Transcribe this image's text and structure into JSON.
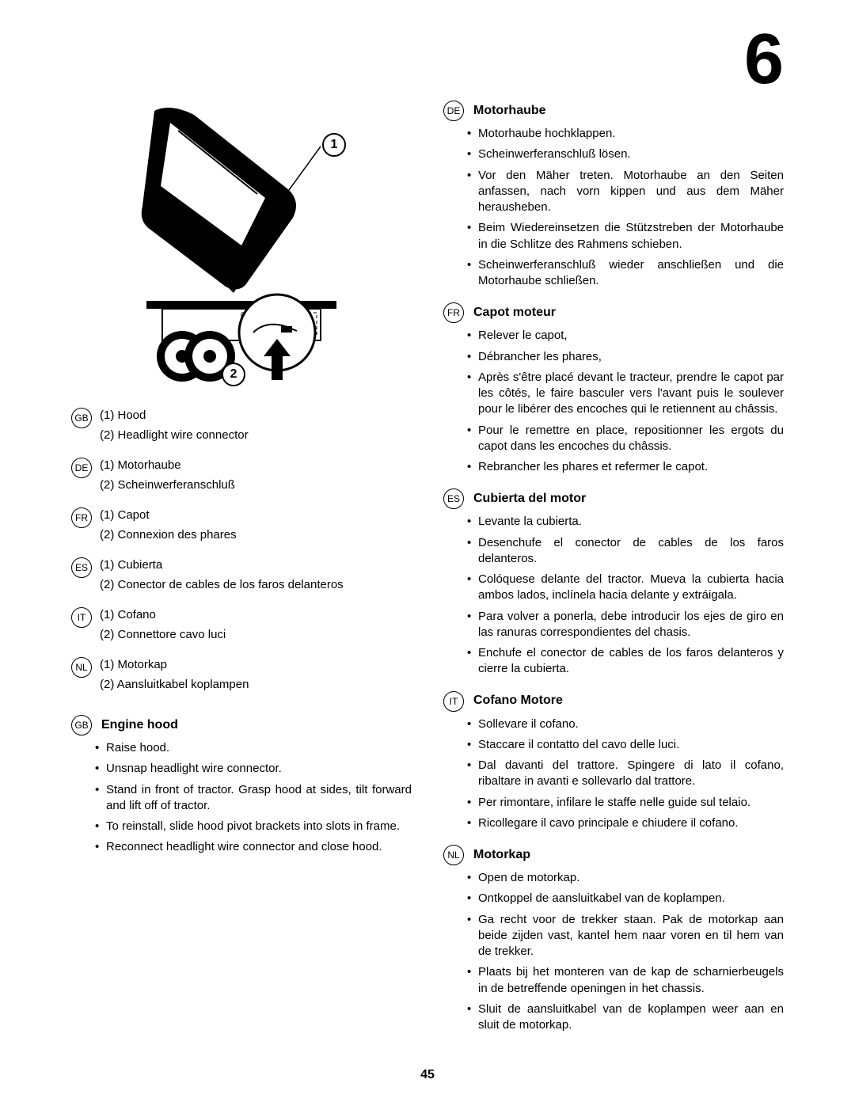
{
  "page_number_top": "6",
  "page_number_bottom": "45",
  "callouts": {
    "one": "1",
    "two": "2"
  },
  "legends": [
    {
      "code": "GB",
      "lines": [
        "(1) Hood",
        "(2) Headlight  wire connector"
      ]
    },
    {
      "code": "DE",
      "lines": [
        "(1) Motorhaube",
        "(2) Scheinwerferanschluß"
      ]
    },
    {
      "code": "FR",
      "lines": [
        "(1) Capot",
        "(2) Connexion des phares"
      ]
    },
    {
      "code": "ES",
      "lines": [
        "(1) Cubierta",
        "(2) Conector de cables de los faros delanteros"
      ]
    },
    {
      "code": "IT",
      "lines": [
        "(1) Cofano",
        "(2) Connettore cavo luci"
      ]
    },
    {
      "code": "NL",
      "lines": [
        "(1) Motorkap",
        "(2) Aansluitkabel koplampen"
      ]
    }
  ],
  "sections_left": [
    {
      "code": "GB",
      "title": "Engine hood",
      "items": [
        "Raise hood.",
        "Unsnap headlight wire connector.",
        "Stand in front of tractor.  Grasp hood at sides, tilt forward and lift off of tractor.",
        "To reinstall, slide hood pivot brackets into slots in frame.",
        "Reconnect headlight wire connector and close hood."
      ]
    }
  ],
  "sections_right": [
    {
      "code": "DE",
      "title": "Motorhaube",
      "items": [
        "Motorhaube hochklappen.",
        "Scheinwerferanschluß lösen.",
        "Vor den Mäher treten. Motorhaube an den Seiten anfassen, nach vorn kippen und aus dem Mäher herausheben.",
        "Beim Wiedereinsetzen die Stützstreben der Motorhaube in die Schlitze des Rahmens schieben.",
        "Scheinwerferanschluß wieder anschließen und die Motorhaube schließen."
      ]
    },
    {
      "code": "FR",
      "title": "Capot moteur",
      "items": [
        "Relever le capot,",
        "Débrancher les phares,",
        "Après s'être placé devant le tracteur, prendre le capot par les côtés, le faire basculer vers l'avant puis le soulever pour le libérer des encoches qui le retiennent au châssis.",
        "Pour le remettre en place, repositionner les ergots du capot dans les encoches du châssis.",
        "Rebrancher les phares et refermer le capot."
      ]
    },
    {
      "code": "ES",
      "title": "Cubierta del motor",
      "items": [
        "Levante la cubierta.",
        "Desenchufe el conector de cables de los faros delanteros.",
        "Colóquese delante del tractor. Mueva la cubierta hacia ambos lados, inclínela hacia delante y extráigala.",
        "Para volver a ponerla, debe introducir los ejes de giro en las ranuras correspondientes del chasis.",
        "Enchufe el conector de cables de los faros delanteros y cierre la cubierta."
      ]
    },
    {
      "code": "IT",
      "title": "Cofano Motore",
      "items": [
        "Sollevare il cofano.",
        "Staccare il contatto del cavo delle luci.",
        "Dal davanti del trattore. Spingere di lato il cofano, ribaltare in avanti e sollevarlo dal trattore.",
        "Per rimontare, infilare le staffe nelle guide sul telaio.",
        "Ricollegare il cavo principale e chiudere il cofano."
      ]
    },
    {
      "code": "NL",
      "title": "Motorkap",
      "items": [
        "Open de motorkap.",
        "Ontkoppel de aansluitkabel van de koplampen.",
        "Ga recht voor de trekker staan. Pak de motorkap aan beide zijden vast, kantel hem naar voren en til hem van de trekker.",
        "Plaats bij het monteren van de kap de scharnierbeugels in de betreffende openingen in het chassis.",
        "Sluit de aansluitkabel van de koplampen weer aan en sluit de motorkap."
      ]
    }
  ]
}
